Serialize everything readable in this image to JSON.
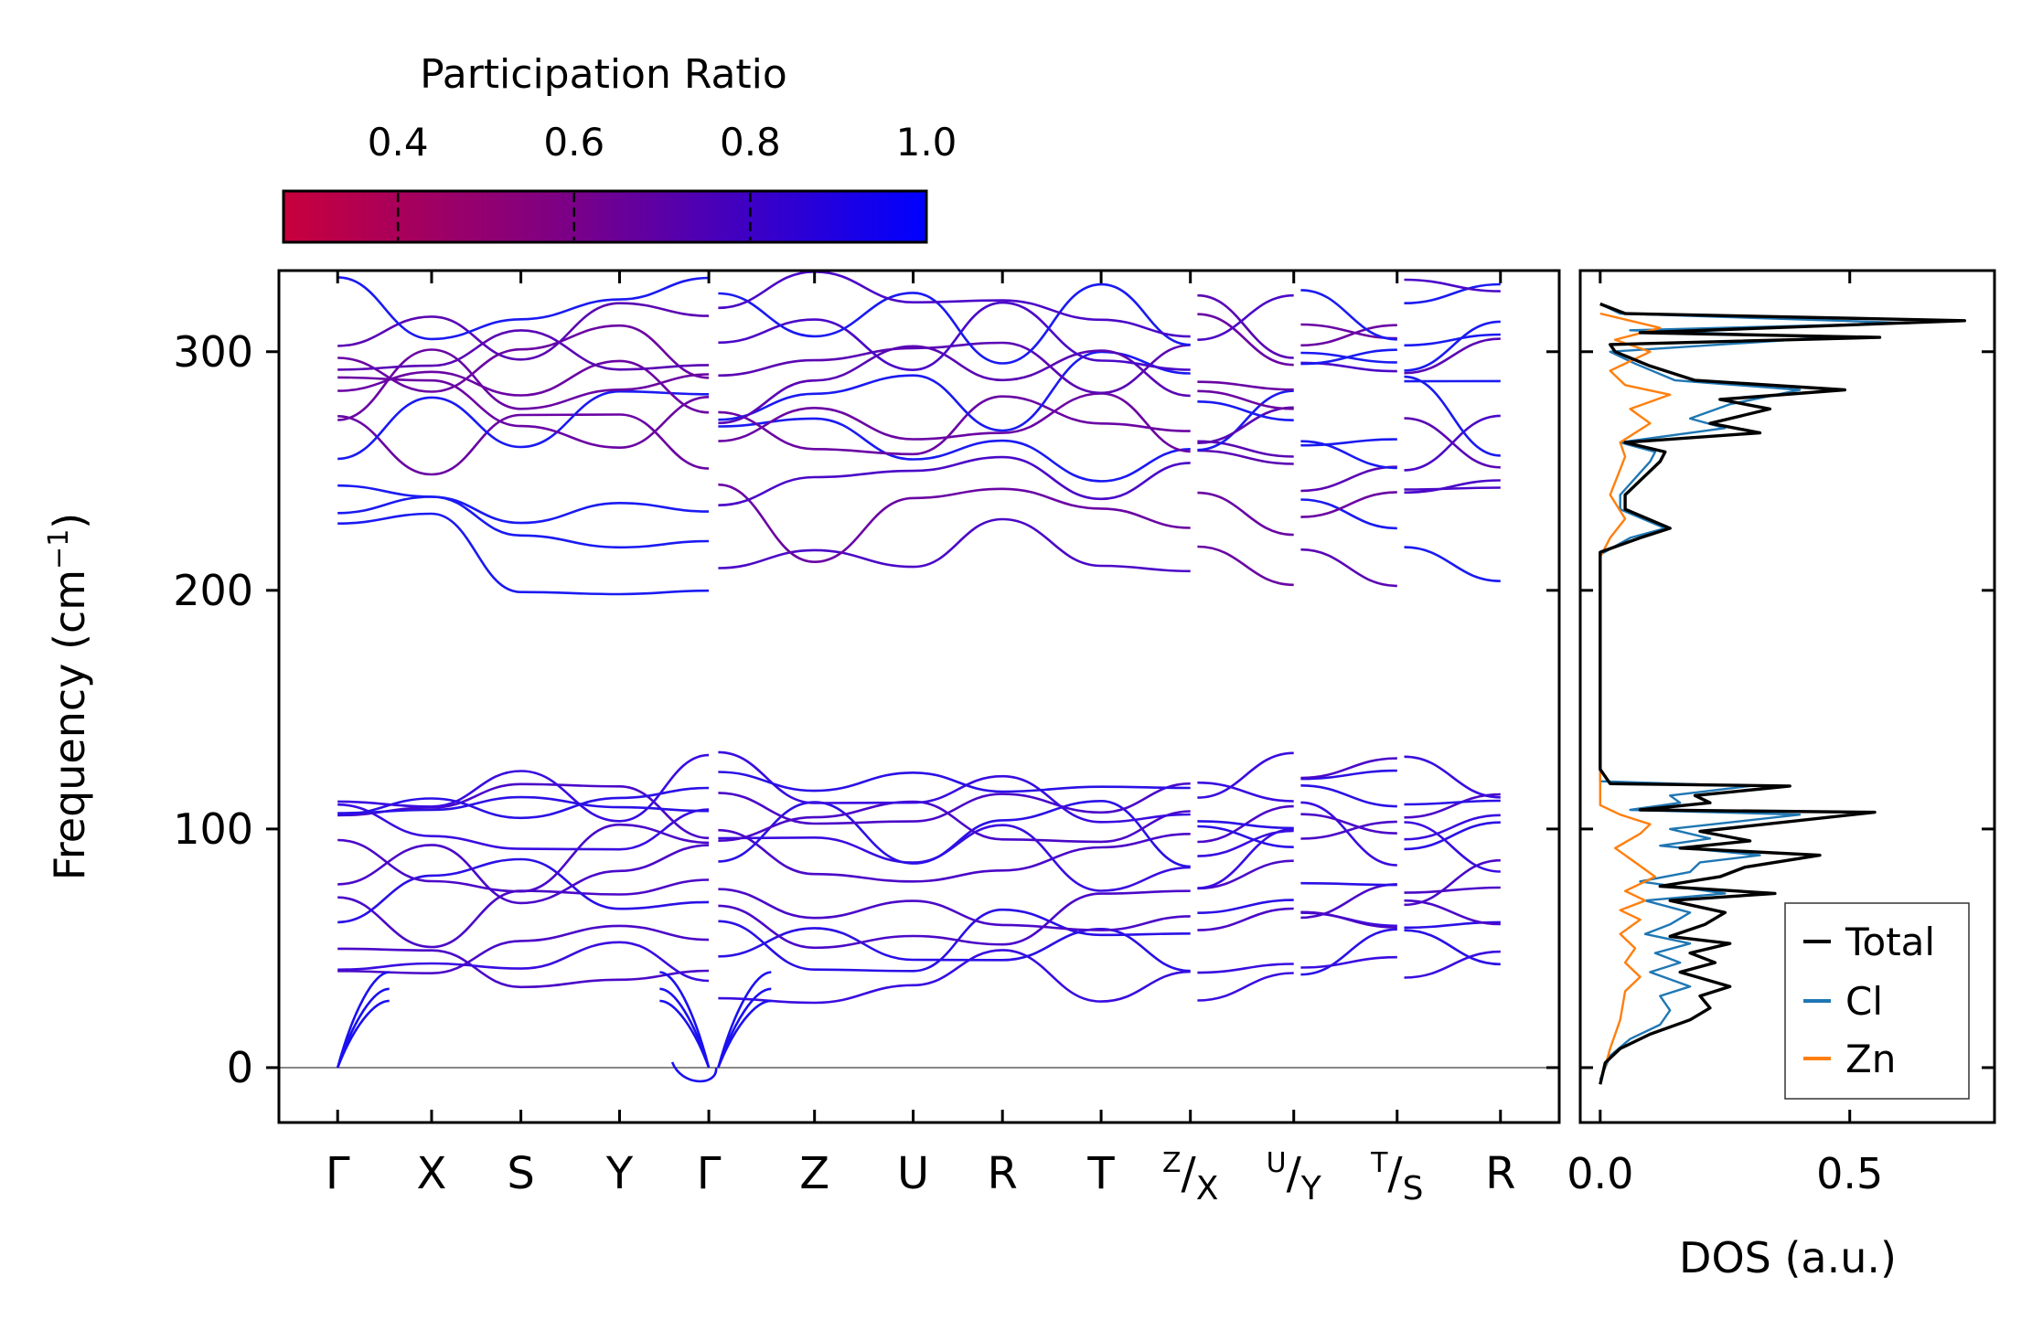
{
  "chart_data": [
    {
      "type": "line",
      "subtype": "phonon-band-structure",
      "ylabel": "Frequency (cm",
      "ylabel_sup": "−1",
      "ylabel_close": ")",
      "ylim": [
        -23,
        334
      ],
      "yticks": [
        0,
        100,
        200,
        300
      ],
      "grid": false,
      "zero_line": true,
      "kpoints": [
        {
          "pos": 0.0,
          "label": "Γ"
        },
        {
          "pos": 0.4,
          "label": "X"
        },
        {
          "pos": 0.78,
          "label": "S"
        },
        {
          "pos": 1.2,
          "label": "Y"
        },
        {
          "pos": 1.58,
          "label": "Γ"
        },
        {
          "pos": 2.03,
          "label": "Z"
        },
        {
          "pos": 2.45,
          "label": "U"
        },
        {
          "pos": 2.83,
          "label": "R"
        },
        {
          "pos": 3.25,
          "label": "T"
        },
        {
          "pos": 3.63,
          "sup": "Z",
          "label": "X"
        },
        {
          "pos": 4.07,
          "sup": "U",
          "label": "Y"
        },
        {
          "pos": 4.51,
          "sup": "T",
          "label": "S"
        },
        {
          "pos": 4.95,
          "label": "R"
        }
      ],
      "xlim": [
        -0.25,
        5.2
      ],
      "segments": [
        [
          0,
          1.58
        ],
        [
          1.62,
          3.63
        ],
        [
          3.66,
          4.07
        ],
        [
          4.1,
          4.51
        ],
        [
          4.54,
          4.95
        ]
      ],
      "bands_note": "Bands drawn as smooth curves between high-symmetry points; values in cm^-1",
      "gamma_bands": [
        216,
        229,
        245,
        258,
        266,
        274,
        283,
        288,
        295,
        307,
        312,
        317,
        43,
        48,
        55,
        65,
        72,
        84,
        89,
        98,
        105,
        106,
        117,
        120
      ],
      "colormap": {
        "title": "Participation Ratio",
        "ticks": [
          "0.4",
          "0.6",
          "0.8",
          "1.0"
        ],
        "range": [
          0.27,
          1.0
        ],
        "low_color": "#c8003c",
        "mid_color": "#7a0088",
        "high_color": "#0000ff"
      }
    },
    {
      "type": "line",
      "subtype": "density-of-states",
      "xlabel": "DOS (a.u.)",
      "xticks": [
        "0.0",
        "0.5"
      ],
      "xlim": [
        -0.04,
        0.79
      ],
      "ylim": [
        -23,
        334
      ],
      "series": [
        {
          "name": "Total",
          "color": "#000000",
          "points": [
            [
              0.0,
              -7
            ],
            [
              0.01,
              2
            ],
            [
              0.04,
              8
            ],
            [
              0.1,
              14
            ],
            [
              0.18,
              20
            ],
            [
              0.22,
              25
            ],
            [
              0.2,
              30
            ],
            [
              0.26,
              34
            ],
            [
              0.16,
              40
            ],
            [
              0.23,
              44
            ],
            [
              0.18,
              48
            ],
            [
              0.26,
              52
            ],
            [
              0.14,
              55
            ],
            [
              0.21,
              60
            ],
            [
              0.25,
              65
            ],
            [
              0.14,
              70
            ],
            [
              0.35,
              73
            ],
            [
              0.12,
              76
            ],
            [
              0.24,
              80
            ],
            [
              0.29,
              84
            ],
            [
              0.44,
              89
            ],
            [
              0.16,
              92
            ],
            [
              0.3,
              95
            ],
            [
              0.2,
              99
            ],
            [
              0.55,
              107
            ],
            [
              0.08,
              108
            ],
            [
              0.22,
              111
            ],
            [
              0.19,
              114
            ],
            [
              0.38,
              118
            ],
            [
              0.02,
              119
            ],
            [
              0.0,
              125
            ],
            [
              0.0,
              210
            ],
            [
              0.0,
              216
            ],
            [
              0.08,
              222
            ],
            [
              0.14,
              226
            ],
            [
              0.05,
              234
            ],
            [
              0.05,
              240
            ],
            [
              0.12,
              254
            ],
            [
              0.13,
              258
            ],
            [
              0.05,
              262
            ],
            [
              0.32,
              266
            ],
            [
              0.22,
              270
            ],
            [
              0.34,
              276
            ],
            [
              0.24,
              280
            ],
            [
              0.49,
              284
            ],
            [
              0.19,
              288
            ],
            [
              0.1,
              294
            ],
            [
              0.03,
              300
            ],
            [
              0.02,
              303
            ],
            [
              0.56,
              306
            ],
            [
              0.08,
              308
            ],
            [
              0.73,
              313
            ],
            [
              0.05,
              316
            ],
            [
              0.0,
              320
            ]
          ]
        },
        {
          "name": "Cl",
          "color": "#1f77b4",
          "points": [
            [
              0.0,
              -5
            ],
            [
              0.02,
              5
            ],
            [
              0.06,
              12
            ],
            [
              0.12,
              18
            ],
            [
              0.14,
              24
            ],
            [
              0.12,
              30
            ],
            [
              0.18,
              34
            ],
            [
              0.1,
              40
            ],
            [
              0.16,
              44
            ],
            [
              0.11,
              48
            ],
            [
              0.18,
              52
            ],
            [
              0.09,
              56
            ],
            [
              0.14,
              60
            ],
            [
              0.18,
              65
            ],
            [
              0.09,
              70
            ],
            [
              0.25,
              73
            ],
            [
              0.08,
              78
            ],
            [
              0.18,
              82
            ],
            [
              0.2,
              86
            ],
            [
              0.32,
              89
            ],
            [
              0.12,
              93
            ],
            [
              0.22,
              96
            ],
            [
              0.14,
              100
            ],
            [
              0.4,
              106
            ],
            [
              0.06,
              108
            ],
            [
              0.16,
              111
            ],
            [
              0.14,
              114
            ],
            [
              0.3,
              118
            ],
            [
              0.0,
              120
            ],
            [
              0.0,
              215
            ],
            [
              0.06,
              222
            ],
            [
              0.13,
              226
            ],
            [
              0.04,
              234
            ],
            [
              0.04,
              240
            ],
            [
              0.1,
              254
            ],
            [
              0.11,
              258
            ],
            [
              0.04,
              262
            ],
            [
              0.25,
              268
            ],
            [
              0.18,
              272
            ],
            [
              0.26,
              278
            ],
            [
              0.4,
              284
            ],
            [
              0.15,
              288
            ],
            [
              0.07,
              295
            ],
            [
              0.02,
              300
            ],
            [
              0.46,
              306
            ],
            [
              0.06,
              309
            ],
            [
              0.62,
              312
            ],
            [
              0.04,
              316
            ],
            [
              0.0,
              320
            ]
          ]
        },
        {
          "name": "Zn",
          "color": "#ff7f0e",
          "points": [
            [
              0.0,
              -7
            ],
            [
              0.02,
              8
            ],
            [
              0.04,
              20
            ],
            [
              0.05,
              32
            ],
            [
              0.08,
              38
            ],
            [
              0.05,
              44
            ],
            [
              0.07,
              50
            ],
            [
              0.04,
              56
            ],
            [
              0.08,
              62
            ],
            [
              0.04,
              66
            ],
            [
              0.09,
              70
            ],
            [
              0.05,
              74
            ],
            [
              0.11,
              80
            ],
            [
              0.07,
              86
            ],
            [
              0.03,
              92
            ],
            [
              0.08,
              98
            ],
            [
              0.1,
              102
            ],
            [
              0.04,
              106
            ],
            [
              0.0,
              110
            ],
            [
              0.0,
              214
            ],
            [
              0.02,
              222
            ],
            [
              0.05,
              230
            ],
            [
              0.02,
              240
            ],
            [
              0.05,
              256
            ],
            [
              0.04,
              262
            ],
            [
              0.1,
              270
            ],
            [
              0.06,
              276
            ],
            [
              0.14,
              282
            ],
            [
              0.05,
              286
            ],
            [
              0.02,
              292
            ],
            [
              0.1,
              300
            ],
            [
              0.03,
              305
            ],
            [
              0.12,
              310
            ],
            [
              0.0,
              316
            ]
          ]
        }
      ],
      "legend": [
        "Total",
        "Cl",
        "Zn"
      ],
      "legend_position": "lower-right"
    }
  ]
}
